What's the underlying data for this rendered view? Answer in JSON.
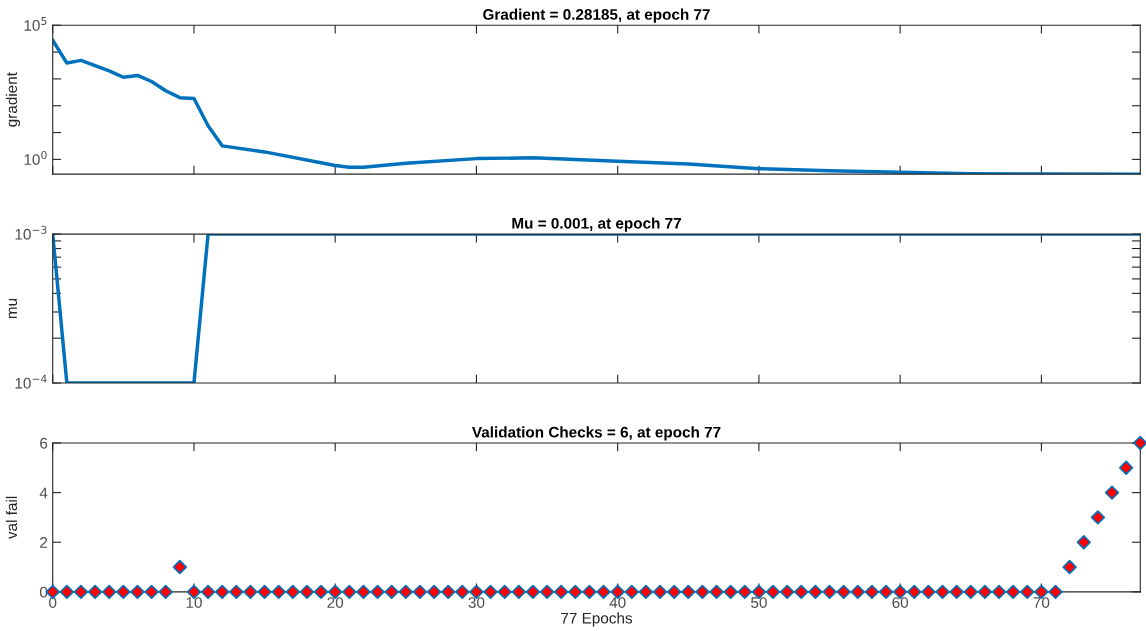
{
  "chart_data": [
    {
      "type": "line",
      "title": "Gradient = 0.28185, at epoch 77",
      "ylabel": "gradient",
      "log": "y",
      "tick_labels": "y",
      "marker": "none",
      "line_style": "solid",
      "xlim": [
        0,
        77
      ],
      "xticks": [
        0,
        10,
        20,
        30,
        40,
        50,
        60,
        70
      ],
      "ylim": [
        0.28185,
        100000
      ],
      "yticks": [
        {
          "value": 1,
          "label": "10$^{0}$"
        },
        {
          "value": 10,
          "label": null
        },
        {
          "value": 100,
          "label": null
        },
        {
          "value": 1000,
          "label": null
        },
        {
          "value": 10000,
          "label": null
        },
        {
          "value": 100000,
          "label": "10$^{5}$"
        }
      ],
      "x": [
        0,
        1,
        2,
        3,
        4,
        5,
        6,
        7,
        8,
        9,
        10,
        11,
        12,
        15,
        20,
        21,
        22,
        25,
        30,
        34,
        37,
        40,
        45,
        50,
        55,
        60,
        65,
        70,
        77
      ],
      "series": [
        {
          "color": "#0072bd",
          "values": [
            27500,
            3900,
            4900,
            3100,
            2000,
            1150,
            1350,
            800,
            360,
            200,
            185,
            18,
            3.2,
            1.9,
            0.59,
            0.51,
            0.51,
            0.72,
            1.07,
            1.15,
            1.0,
            0.85,
            0.68,
            0.45,
            0.38,
            0.33,
            0.295,
            0.285,
            0.28185
          ]
        }
      ]
    },
    {
      "type": "line",
      "title": "Mu = 0.001, at epoch 77",
      "ylabel": "mu",
      "log": "y",
      "tick_labels": "y",
      "marker": "none",
      "line_style": "solid",
      "xlim": [
        0,
        77
      ],
      "xticks": [
        0,
        10,
        20,
        30,
        40,
        50,
        60,
        70
      ],
      "ylim": [
        0.0001,
        0.001
      ],
      "yticks": [
        {
          "value": 0.0001,
          "label": "10$^{−4}$"
        },
        {
          "value": 0.0002,
          "label": null
        },
        {
          "value": 0.0003,
          "label": null
        },
        {
          "value": 0.0004,
          "label": null
        },
        {
          "value": 0.0005,
          "label": null
        },
        {
          "value": 0.0006,
          "label": null
        },
        {
          "value": 0.0007,
          "label": null
        },
        {
          "value": 0.0008,
          "label": null
        },
        {
          "value": 0.0009,
          "label": null
        },
        {
          "value": 0.001,
          "label": "10$^{−3}$"
        }
      ],
      "x": [
        0,
        1,
        10,
        11,
        77
      ],
      "series": [
        {
          "color": "#0072bd",
          "values": [
            0.001,
            0.0001,
            0.0001,
            0.001,
            0.001
          ]
        }
      ]
    },
    {
      "type": "scatter",
      "title": "Validation Checks = 6, at epoch 77",
      "ylabel": "val fail",
      "xlabel": "77 Epochs",
      "marker": "diamond",
      "xlim": [
        0,
        77
      ],
      "xticks": [
        0,
        10,
        20,
        30,
        40,
        50,
        60,
        70
      ],
      "ylim": [
        0,
        6
      ],
      "yticks": [
        0,
        2,
        4,
        6
      ],
      "x": [
        0,
        1,
        2,
        3,
        4,
        5,
        6,
        7,
        8,
        9,
        10,
        11,
        12,
        13,
        14,
        15,
        16,
        17,
        18,
        19,
        20,
        21,
        22,
        23,
        24,
        25,
        26,
        27,
        28,
        29,
        30,
        31,
        32,
        33,
        34,
        35,
        36,
        37,
        38,
        39,
        40,
        41,
        42,
        43,
        44,
        45,
        46,
        47,
        48,
        49,
        50,
        51,
        52,
        53,
        54,
        55,
        56,
        57,
        58,
        59,
        60,
        61,
        62,
        63,
        64,
        65,
        66,
        67,
        68,
        69,
        70,
        71,
        72,
        73,
        74,
        75,
        76,
        77
      ],
      "series": [
        {
          "color": "#ff0000",
          "values": [
            0,
            0,
            0,
            0,
            0,
            0,
            0,
            0,
            0,
            1,
            0,
            0,
            0,
            0,
            0,
            0,
            0,
            0,
            0,
            0,
            0,
            0,
            0,
            0,
            0,
            0,
            0,
            0,
            0,
            0,
            0,
            0,
            0,
            0,
            0,
            0,
            0,
            0,
            0,
            0,
            0,
            0,
            0,
            0,
            0,
            0,
            0,
            0,
            0,
            0,
            0,
            0,
            0,
            0,
            0,
            0,
            0,
            0,
            0,
            0,
            0,
            0,
            0,
            0,
            0,
            0,
            0,
            0,
            0,
            0,
            0,
            0,
            1,
            2,
            3,
            4,
            5,
            6
          ]
        }
      ]
    }
  ]
}
